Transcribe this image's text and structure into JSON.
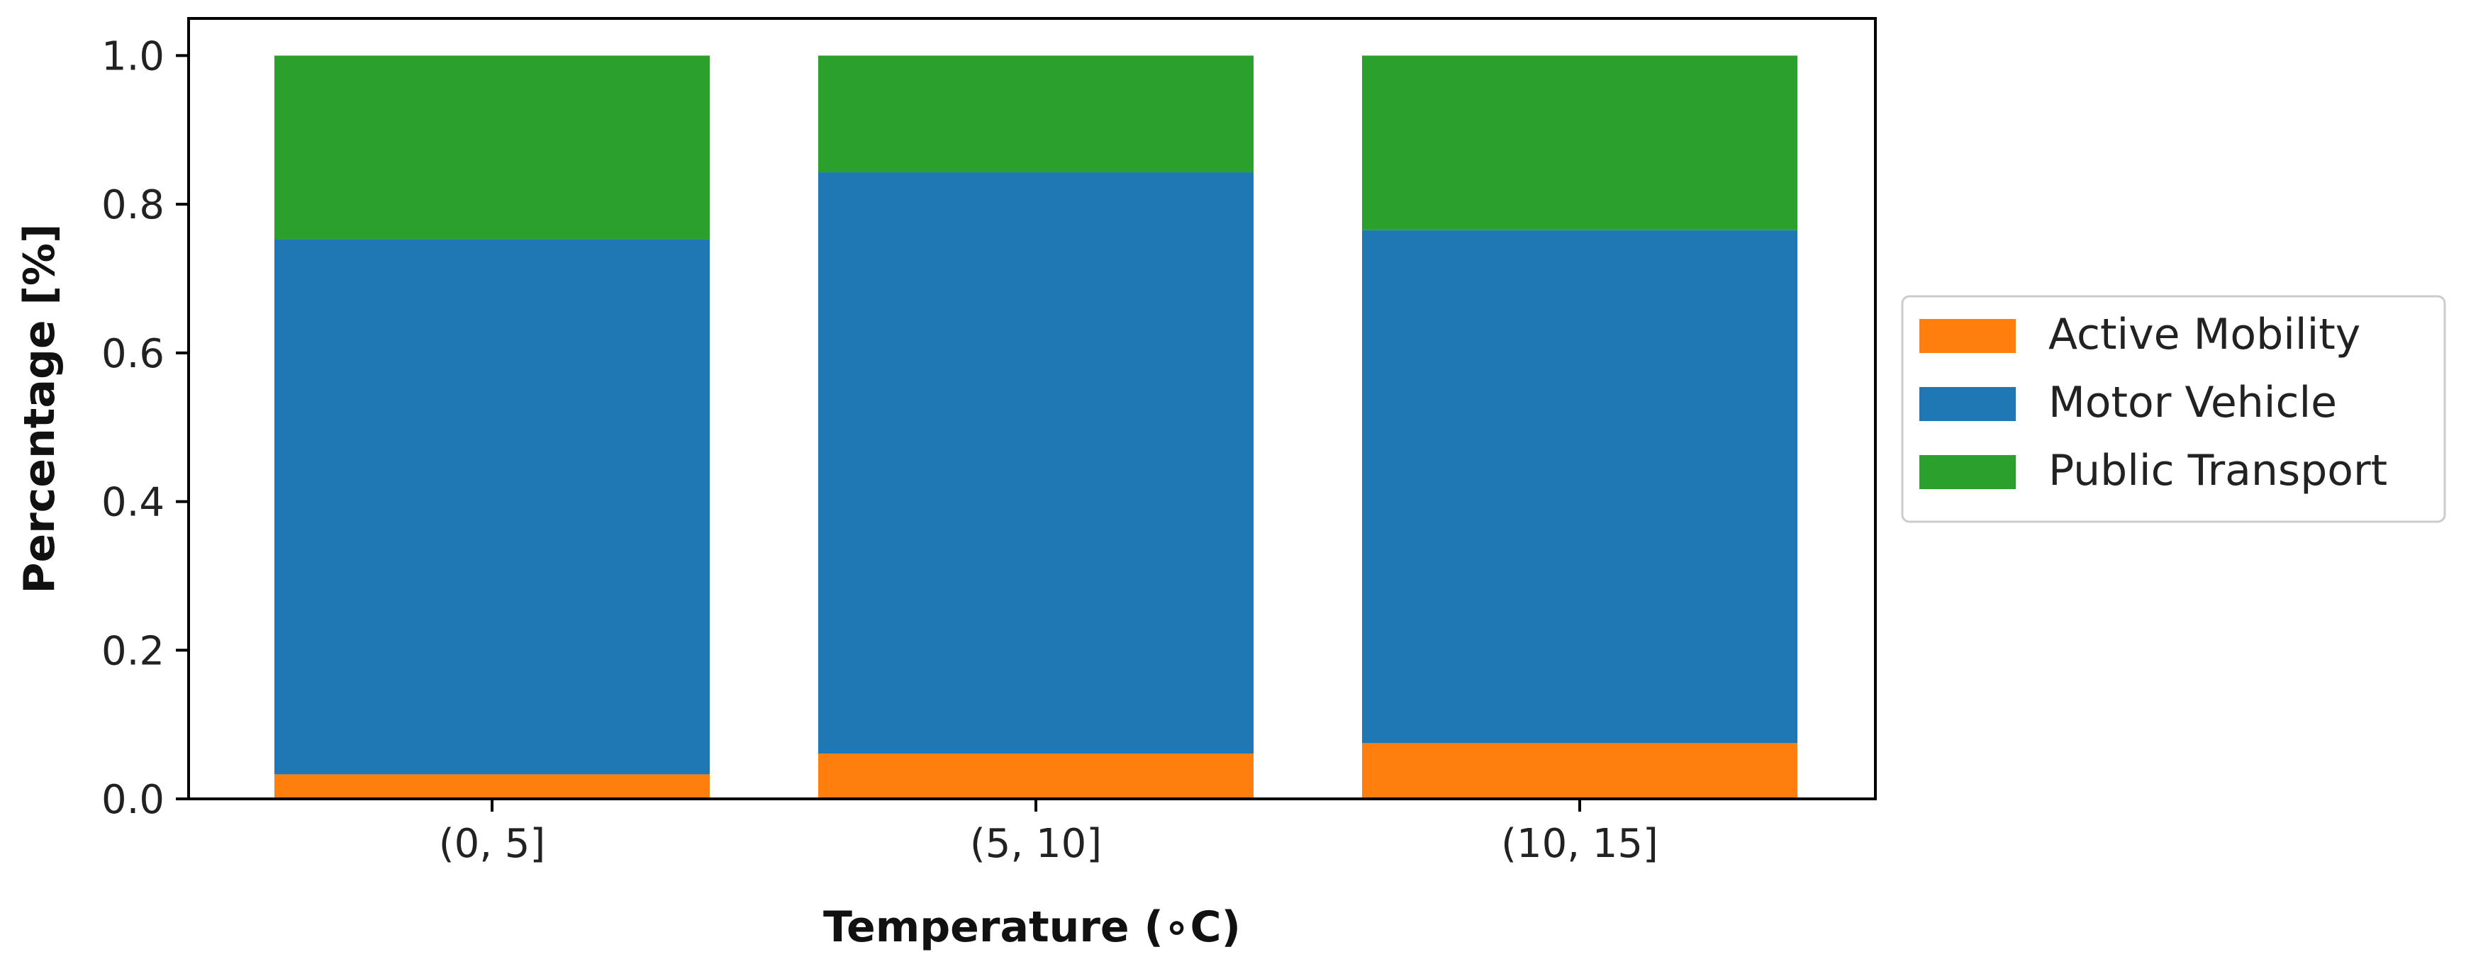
{
  "chart_data": {
    "type": "bar",
    "stacked": true,
    "categories": [
      "(0, 5]",
      "(5, 10]",
      "(10, 15]"
    ],
    "series": [
      {
        "name": "Active Mobility",
        "color": "#ff7f0e",
        "values": [
          0.033,
          0.061,
          0.075
        ]
      },
      {
        "name": "Motor Vehicle",
        "color": "#1f77b4",
        "values": [
          0.72,
          0.782,
          0.69
        ]
      },
      {
        "name": "Public Transport",
        "color": "#2ca02c",
        "values": [
          0.247,
          0.157,
          0.235
        ]
      }
    ],
    "xlabel": "Temperature (∘C)",
    "ylabel": "Percentage [%]",
    "ylim": [
      0,
      1.05
    ],
    "yticks": [
      0.0,
      0.2,
      0.4,
      0.6,
      0.8,
      1.0
    ],
    "ytick_labels": [
      "0.0",
      "0.2",
      "0.4",
      "0.6",
      "0.8",
      "1.0"
    ],
    "grid": false,
    "legend_position": "center-right outside plot"
  }
}
